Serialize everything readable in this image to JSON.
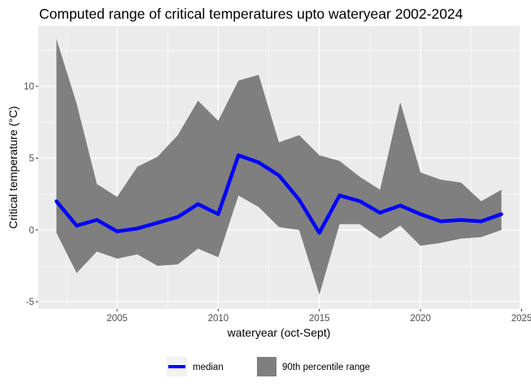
{
  "chart_data": {
    "type": "area",
    "title": "Computed range of critical temperatures upto wateryear 2002-2024",
    "xlabel": "wateryear (oct-Sept)",
    "ylabel": "Critical temperature (°C)",
    "xlim": [
      2001.1,
      2024.9
    ],
    "ylim": [
      -5.5,
      14.2
    ],
    "x_ticks": [
      2005,
      2010,
      2015,
      2020,
      2025
    ],
    "y_ticks": [
      -5,
      0,
      5,
      10
    ],
    "grid": true,
    "legend_position": "bottom",
    "colors": {
      "panel": "#ebebeb",
      "grid": "#ffffff",
      "median": "#0000ff",
      "range": "#7f7f7f"
    },
    "x": [
      2002,
      2003,
      2004,
      2005,
      2006,
      2007,
      2008,
      2009,
      2010,
      2011,
      2012,
      2013,
      2014,
      2015,
      2016,
      2017,
      2018,
      2019,
      2020,
      2021,
      2022,
      2023,
      2024
    ],
    "series": [
      {
        "name": "median",
        "kind": "line",
        "values": [
          2.0,
          0.3,
          0.7,
          -0.1,
          0.1,
          0.5,
          0.9,
          1.8,
          1.1,
          5.2,
          4.7,
          3.8,
          2.1,
          -0.2,
          2.4,
          2.0,
          1.2,
          1.7,
          1.1,
          0.6,
          0.7,
          0.6,
          1.1
        ]
      },
      {
        "name": "90th percentile range",
        "kind": "ribbon",
        "lower": [
          -0.2,
          -3.0,
          -1.5,
          -2.0,
          -1.7,
          -2.5,
          -2.4,
          -1.3,
          -1.9,
          2.4,
          1.6,
          0.2,
          0.0,
          -4.5,
          0.4,
          0.4,
          -0.6,
          0.3,
          -1.1,
          -0.9,
          -0.6,
          -0.5,
          0.0
        ],
        "upper": [
          13.3,
          8.8,
          3.2,
          2.3,
          4.4,
          5.1,
          6.6,
          9.0,
          7.6,
          10.4,
          10.8,
          6.1,
          6.6,
          5.2,
          4.8,
          3.7,
          2.8,
          8.9,
          4.0,
          3.5,
          3.3,
          2.0,
          2.8
        ]
      }
    ],
    "legend": [
      {
        "label": "median",
        "kind": "line"
      },
      {
        "label": "90th percentile range",
        "kind": "ribbon"
      }
    ]
  }
}
